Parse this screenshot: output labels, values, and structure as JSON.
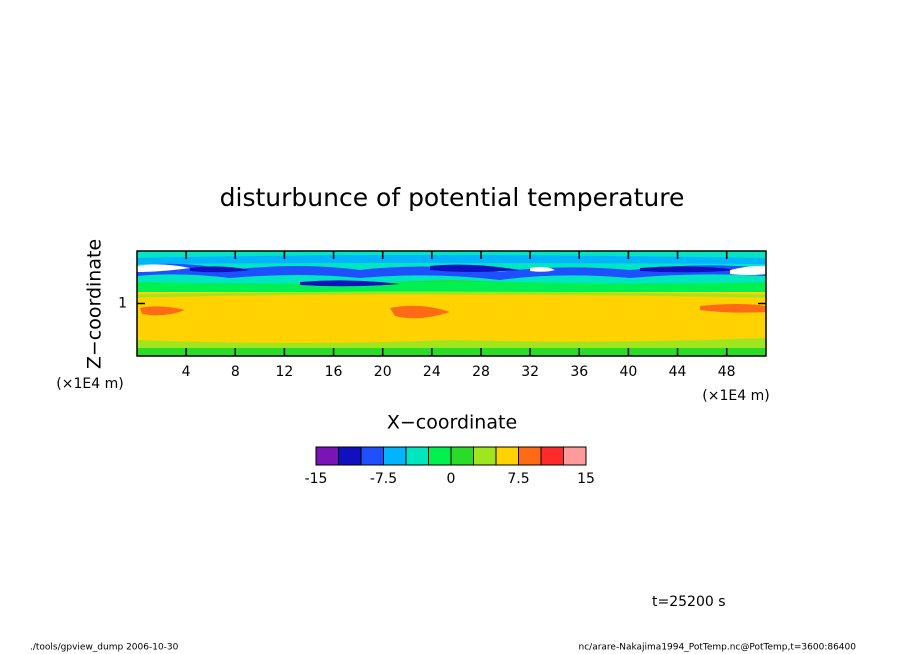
{
  "chart_data": {
    "type": "contour",
    "title": "disturbunce of potential temperature",
    "x_label": "X−coordinate",
    "y_label": "Z−coordinate",
    "x_unit": "(×1E4 m)",
    "y_unit": "(×1E4 m)",
    "xlim": [
      0,
      51.2
    ],
    "xticks": [
      4,
      8,
      12,
      16,
      20,
      24,
      28,
      32,
      36,
      40,
      44,
      48
    ],
    "ylim": [
      0,
      2
    ],
    "yticks": [
      1
    ],
    "levels": [
      -15,
      -12.5,
      -10,
      -7.5,
      -5,
      -2.5,
      0,
      2.5,
      5,
      7.5,
      10,
      12.5,
      15
    ],
    "colors": [
      "#7a14b4",
      "#1010c0",
      "#1e50ff",
      "#00b4ff",
      "#00e6c0",
      "#00f050",
      "#28dc28",
      "#a0e61e",
      "#ffd200",
      "#ff6a14",
      "#ff2a2a",
      "#ff9a9a"
    ],
    "colorbar_ticks": [
      -15,
      -7.5,
      0,
      7.5,
      15
    ],
    "annotation": "t=25200 s",
    "footer_left": "./tools/gpview_dump  2006-10-30",
    "footer_right": "nc/arare-Nakajima1994_PotTemp.nc@PotTemp,t=3600:86400"
  }
}
